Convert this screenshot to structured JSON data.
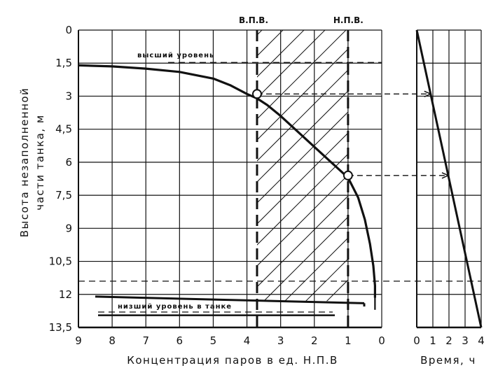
{
  "chart_data": [
    {
      "type": "line",
      "name": "concentration",
      "xlabel": "Концентрация паров в ед. Н.П.В",
      "ylabel": [
        "Высота незаполненной",
        "части танка, м"
      ],
      "x_ticks": [
        "9",
        "8",
        "7",
        "6",
        "5",
        "4",
        "3",
        "2",
        "1",
        "0"
      ],
      "y_ticks": [
        "0",
        "1,5",
        "3",
        "4,5",
        "6",
        "7,5",
        "9",
        "10,5",
        "12",
        "13,5"
      ],
      "xlim": [
        9,
        0
      ],
      "ylim": [
        0,
        13.5
      ],
      "grid": true,
      "zone_labels": {
        "upper": "В.П.В.",
        "lower": "Н.П.В."
      },
      "zone_limits": {
        "upper": 3.7,
        "lower": 1.0
      },
      "level_labels": {
        "high": "высший уровень",
        "low": "низший уровень в танке"
      },
      "curve": [
        [
          9,
          1.6
        ],
        [
          8,
          1.65
        ],
        [
          7,
          1.75
        ],
        [
          6,
          1.9
        ],
        [
          5,
          2.2
        ],
        [
          4.5,
          2.5
        ],
        [
          4,
          2.9
        ],
        [
          3.7,
          3.1
        ],
        [
          3.4,
          3.4
        ],
        [
          3,
          3.9
        ],
        [
          2.5,
          4.6
        ],
        [
          2,
          5.3
        ],
        [
          1.5,
          6.0
        ],
        [
          1.0,
          6.7
        ],
        [
          0.7,
          7.6
        ],
        [
          0.5,
          8.6
        ],
        [
          0.35,
          9.7
        ],
        [
          0.25,
          10.7
        ],
        [
          0.2,
          11.6
        ],
        [
          0.2,
          12.15
        ]
      ],
      "markers": [
        {
          "x": 3.7,
          "y": 2.9
        },
        {
          "x": 1.0,
          "y": 6.6
        }
      ]
    },
    {
      "type": "line",
      "name": "time",
      "xlabel": "Время, ч",
      "x_ticks": [
        "0",
        "1",
        "2",
        "3",
        "4"
      ],
      "xlim": [
        0,
        4
      ],
      "ylim": [
        0,
        13.5
      ],
      "line": [
        [
          0,
          0
        ],
        [
          4,
          13.5
        ]
      ]
    }
  ]
}
